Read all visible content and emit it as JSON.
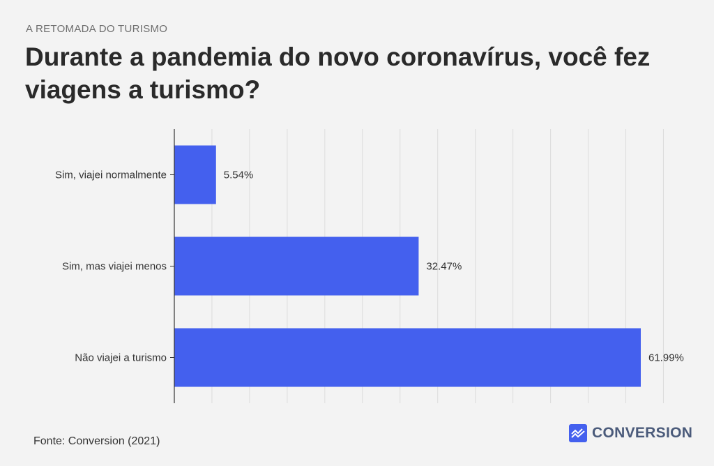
{
  "header": {
    "kicker": "A RETOMADA DO TURISMO",
    "title": "Durante a pandemia do novo coronavírus, você fez viagens a turismo?"
  },
  "footer": {
    "source": "Fonte: Conversion (2021)",
    "logo_text": "CONVERSION"
  },
  "colors": {
    "bar": "#4460ee",
    "grid": "#dcdcdc",
    "axis": "#333333",
    "background": "#f3f3f3"
  },
  "chart_data": {
    "type": "bar",
    "orientation": "horizontal",
    "categories": [
      "Sim, viajei normalmente",
      "Sim, mas viajei menos",
      "Não viajei a turismo"
    ],
    "values": [
      5.54,
      32.47,
      61.99
    ],
    "value_labels": [
      "5.54%",
      "32.47%",
      "61.99%"
    ],
    "xlim": [
      0,
      65
    ],
    "grid": true,
    "legend": "none"
  }
}
